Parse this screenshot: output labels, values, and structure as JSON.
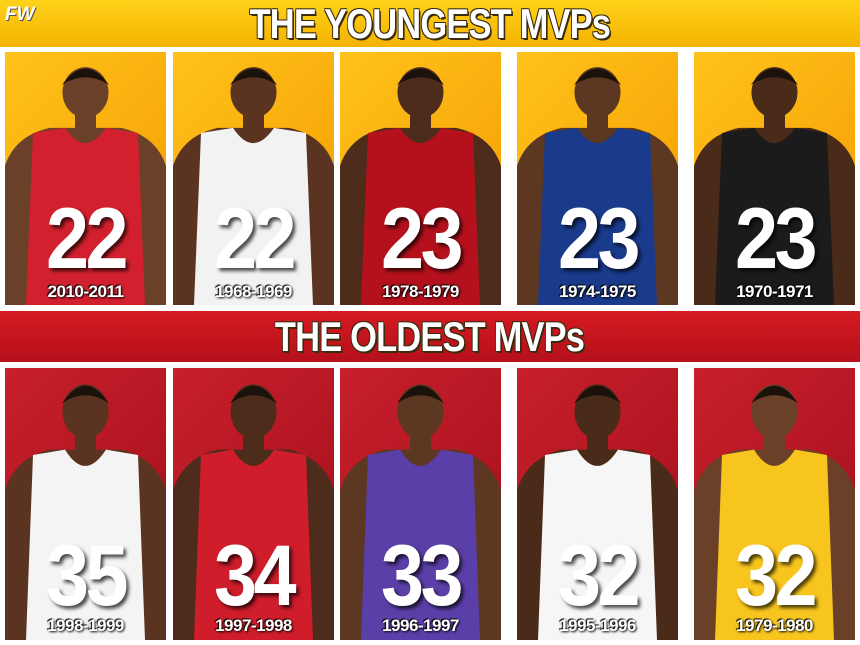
{
  "logo": "FW",
  "sections": [
    {
      "title": "THE YOUNGEST MVPs",
      "cards": [
        {
          "age": 22,
          "season": "2010-2011"
        },
        {
          "age": 22,
          "season": "1968-1969"
        },
        {
          "age": 23,
          "season": "1978-1979"
        },
        {
          "age": 23,
          "season": "1974-1975"
        },
        {
          "age": 23,
          "season": "1970-1971"
        }
      ]
    },
    {
      "title": "THE OLDEST MVPs",
      "cards": [
        {
          "age": 35,
          "season": "1998-1999"
        },
        {
          "age": 34,
          "season": "1997-1998"
        },
        {
          "age": 33,
          "season": "1996-1997"
        },
        {
          "age": 32,
          "season": "1995-1996"
        },
        {
          "age": 32,
          "season": "1979-1980"
        }
      ]
    }
  ]
}
